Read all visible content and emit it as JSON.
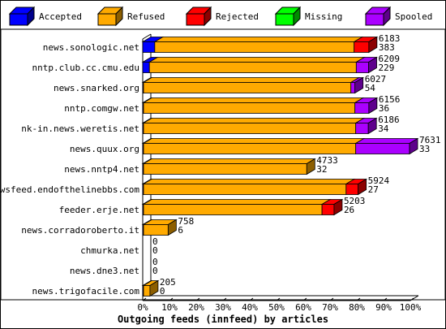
{
  "chart_data": {
    "type": "bar",
    "orientation": "horizontal",
    "stacked": true,
    "three_d": true,
    "title": "Outgoing feeds (innfeed) by articles",
    "xlim": [
      0,
      100
    ],
    "x_ticks": [
      "0%",
      "10%",
      "20%",
      "30%",
      "40%",
      "50%",
      "60%",
      "70%",
      "80%",
      "90%",
      "100%"
    ],
    "legend_position": "top",
    "legend": [
      {
        "name": "Accepted",
        "color": "#0000ff"
      },
      {
        "name": "Refused",
        "color": "#ffaa00"
      },
      {
        "name": "Rejected",
        "color": "#ff0000"
      },
      {
        "name": "Missing",
        "color": "#00ff00"
      },
      {
        "name": "Spooled",
        "color": "#aa00ff"
      }
    ],
    "categories": [
      "news.sonologic.net",
      "nntp.club.cc.cmu.edu",
      "news.snarked.org",
      "nntp.comgw.net",
      "nk-in.news.weretis.net",
      "news.quux.org",
      "news.nntp4.net",
      "newsfeed.endofthelinebbs.com",
      "feeder.erje.net",
      "news.corradoroberto.it",
      "chmurka.net",
      "news.dne3.net",
      "news.trigofacile.com"
    ],
    "series": [
      {
        "name": "Accepted",
        "values": [
          4.5,
          2.5,
          0.3,
          0.3,
          0.3,
          0.3,
          0.3,
          0.3,
          0.3,
          0.3,
          0,
          0,
          0.3
        ]
      },
      {
        "name": "Refused",
        "values": [
          74.5,
          77.3,
          77.5,
          79,
          79.3,
          79.3,
          61,
          75.7,
          66.7,
          9.2,
          0,
          0,
          2.4
        ]
      },
      {
        "name": "Rejected",
        "values": [
          5.5,
          0,
          0,
          0,
          0,
          0,
          0,
          4.5,
          4.5,
          0,
          0,
          0,
          0
        ]
      },
      {
        "name": "Missing",
        "values": [
          0,
          0,
          0,
          0,
          0,
          0,
          0,
          0,
          0,
          0,
          0,
          0,
          0
        ]
      },
      {
        "name": "Spooled",
        "values": [
          0,
          4.6,
          1.5,
          5.2,
          4.7,
          20.1,
          0,
          0,
          0,
          0,
          0,
          0,
          0
        ]
      }
    ],
    "labels_top": [
      "6183",
      "6209",
      "6027",
      "6156",
      "6186",
      "7631",
      "4733",
      "5924",
      "5203",
      "758",
      "0",
      "0",
      "205"
    ],
    "labels_bottom": [
      "383",
      "229",
      "54",
      "36",
      "34",
      "33",
      "32",
      "27",
      "26",
      "6",
      "0",
      "0",
      "0"
    ]
  }
}
